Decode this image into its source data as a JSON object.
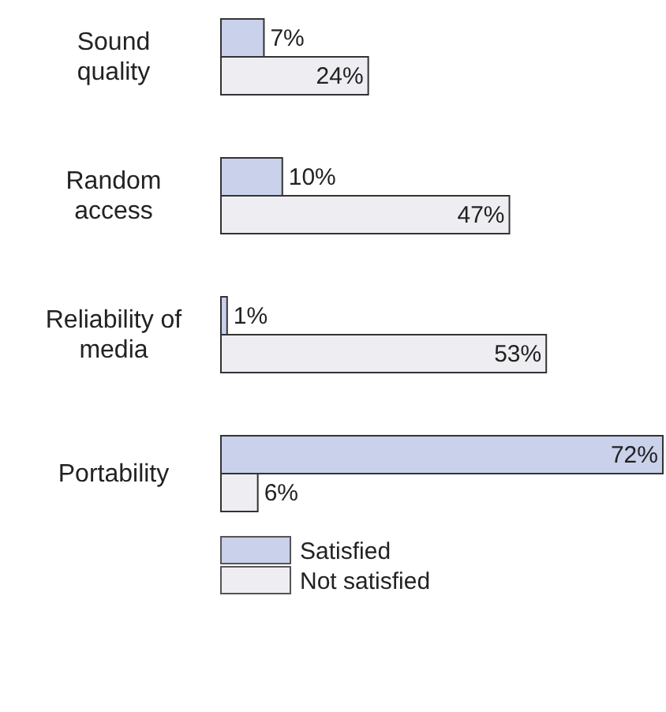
{
  "chart_data": {
    "type": "bar",
    "orientation": "horizontal",
    "categories": [
      "Sound quality",
      "Random access",
      "Reliability of media",
      "Portability"
    ],
    "series": [
      {
        "name": "Satisfied",
        "color": "#c9d1eb",
        "values": [
          7,
          10,
          1,
          72
        ],
        "value_labels": [
          "7%",
          "10%",
          "1%",
          "72%"
        ]
      },
      {
        "name": "Not satisfied",
        "color": "#eeeef2",
        "values": [
          24,
          47,
          53,
          6
        ],
        "value_labels": [
          "24%",
          "47%",
          "53%",
          "6%"
        ]
      }
    ],
    "legend": "bottom"
  }
}
